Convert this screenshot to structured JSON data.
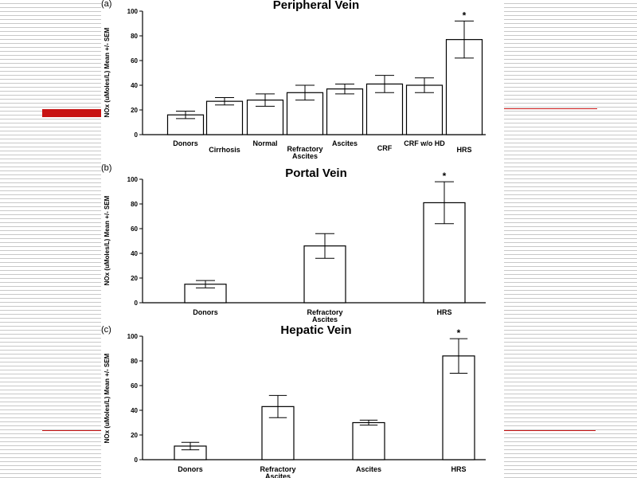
{
  "chart_data": [
    {
      "type": "bar",
      "panel_letter": "(a)",
      "title": "Peripheral Vein",
      "ylabel": "NOx (uMoles/L) Mean +/- SEM",
      "ylim": [
        0,
        100
      ],
      "yticks": [
        0,
        20,
        40,
        60,
        80,
        100
      ],
      "categories": [
        "Donors",
        "Cirrhosis",
        "Normal",
        "Refractory Ascites",
        "Ascites",
        "CRF",
        "CRF w/o HD",
        "HRS"
      ],
      "values": [
        16,
        27,
        28,
        34,
        37,
        41,
        40,
        77
      ],
      "errors": [
        3,
        3,
        5,
        6,
        4,
        7,
        6,
        15
      ],
      "significance": [
        "",
        "",
        "",
        "",
        "",
        "",
        "",
        "*"
      ]
    },
    {
      "type": "bar",
      "panel_letter": "(b)",
      "title": "Portal Vein",
      "ylabel": "NOx (uMoles/L) Mean +/- SEM",
      "ylim": [
        0,
        100
      ],
      "yticks": [
        0,
        20,
        40,
        60,
        80,
        100
      ],
      "categories": [
        "Donors",
        "Refractory Ascites",
        "HRS"
      ],
      "values": [
        15,
        46,
        81
      ],
      "errors": [
        3,
        10,
        17
      ],
      "significance": [
        "",
        "",
        "*"
      ]
    },
    {
      "type": "bar",
      "panel_letter": "(c)",
      "title": "Hepatic Vein",
      "ylabel": "NOx (uMoles/L) Mean +/- SEM",
      "ylim": [
        0,
        100
      ],
      "yticks": [
        0,
        20,
        40,
        60,
        80,
        100
      ],
      "categories": [
        "Donors",
        "Refractory Ascites",
        "Ascites",
        "HRS"
      ],
      "values": [
        11,
        43,
        30,
        84
      ],
      "errors": [
        3,
        9,
        2,
        14
      ],
      "significance": [
        "",
        "",
        "",
        "*"
      ]
    }
  ]
}
